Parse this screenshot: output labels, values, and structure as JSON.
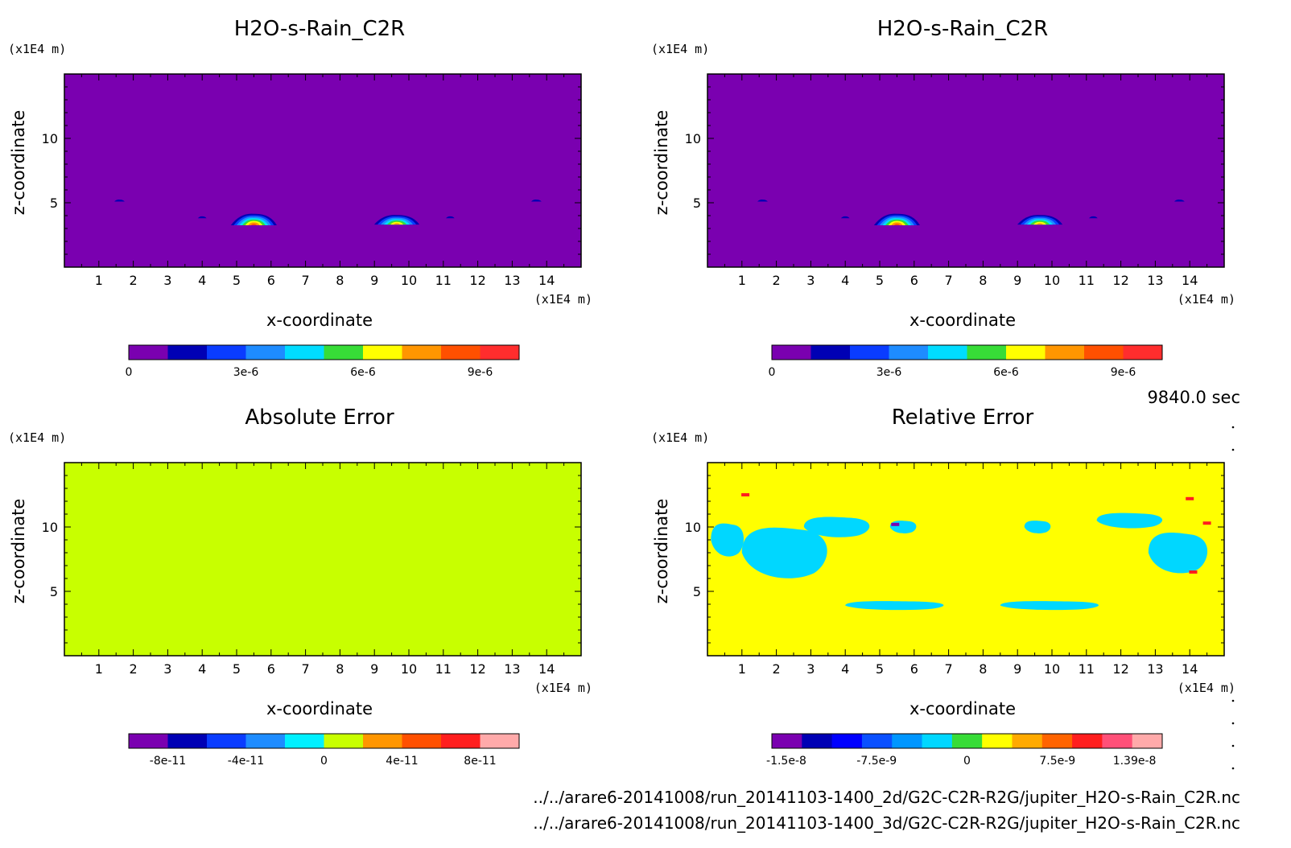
{
  "figure": {
    "time_label": "9840.0 sec",
    "footer_lines": [
      "../../arare6-20141008/run_20141103-1400_2d/G2C-C2R-R2G/jupiter_H2O-s-Rain_C2R.nc",
      "../../arare6-20141008/run_20141103-1400_3d/G2C-C2R-R2G/jupiter_H2O-s-Rain_C2R.nc"
    ]
  },
  "chart_data": [
    {
      "type": "heatmap",
      "title": "H2O-s-Rain_C2R",
      "xlabel": "x-coordinate",
      "ylabel": "z-coordinate",
      "x_unit": "(x1E4 m)",
      "y_unit": "(x1E4 m)",
      "xlim": [
        0,
        15
      ],
      "ylim": [
        0,
        15
      ],
      "x_ticks": [
        1,
        2,
        3,
        4,
        5,
        6,
        7,
        8,
        9,
        10,
        11,
        12,
        13,
        14
      ],
      "y_ticks": [
        5,
        10
      ],
      "background": "#7a00b0",
      "features": [
        {
          "kind": "blob",
          "x": 5.5,
          "z": 3.6,
          "width": 1.5,
          "height": 1.0,
          "peak": 9e-06
        },
        {
          "kind": "blob",
          "x": 9.65,
          "z": 3.6,
          "width": 1.5,
          "height": 0.85,
          "peak": 8e-06
        },
        {
          "kind": "blob",
          "x": 4.0,
          "z": 3.9,
          "width": 0.5,
          "height": 0.3,
          "peak": 2e-06
        },
        {
          "kind": "blob",
          "x": 11.2,
          "z": 3.9,
          "width": 0.5,
          "height": 0.3,
          "peak": 2e-06
        },
        {
          "kind": "blob",
          "x": 1.6,
          "z": 5.2,
          "width": 0.6,
          "height": 0.3,
          "peak": 1.5e-06
        },
        {
          "kind": "blob",
          "x": 13.7,
          "z": 5.2,
          "width": 0.6,
          "height": 0.3,
          "peak": 1.5e-06
        },
        {
          "kind": "blob",
          "x": 7.1,
          "z": 3.6,
          "width": 0.2,
          "height": 0.2,
          "peak": 1e-06
        },
        {
          "kind": "blob",
          "x": 8.0,
          "z": 3.6,
          "width": 0.2,
          "height": 0.2,
          "peak": 1e-06
        }
      ],
      "colorbar": {
        "colors": [
          "#7a00b0",
          "#0000b4",
          "#0a3cff",
          "#1e8cff",
          "#00dcff",
          "#37dc37",
          "#ffff00",
          "#ff9600",
          "#ff5000",
          "#ff2d2d"
        ],
        "tick_labels": [
          {
            "value": 0,
            "label": "0"
          },
          {
            "value": 3e-06,
            "label": "3e-6"
          },
          {
            "value": 6e-06,
            "label": "6e-6"
          },
          {
            "value": 9e-06,
            "label": "9e-6"
          }
        ],
        "min": 0,
        "max": 1e-05
      }
    },
    {
      "type": "heatmap",
      "title": "H2O-s-Rain_C2R",
      "xlabel": "x-coordinate",
      "ylabel": "z-coordinate",
      "x_unit": "(x1E4 m)",
      "y_unit": "(x1E4 m)",
      "xlim": [
        0,
        15
      ],
      "ylim": [
        0,
        15
      ],
      "x_ticks": [
        1,
        2,
        3,
        4,
        5,
        6,
        7,
        8,
        9,
        10,
        11,
        12,
        13,
        14
      ],
      "y_ticks": [
        5,
        10
      ],
      "background": "#7a00b0",
      "features": [
        {
          "kind": "blob",
          "x": 5.5,
          "z": 3.6,
          "width": 1.5,
          "height": 1.0,
          "peak": 9e-06
        },
        {
          "kind": "blob",
          "x": 9.65,
          "z": 3.6,
          "width": 1.5,
          "height": 0.85,
          "peak": 8e-06
        },
        {
          "kind": "blob",
          "x": 4.0,
          "z": 3.9,
          "width": 0.5,
          "height": 0.3,
          "peak": 2e-06
        },
        {
          "kind": "blob",
          "x": 11.2,
          "z": 3.9,
          "width": 0.5,
          "height": 0.3,
          "peak": 2e-06
        },
        {
          "kind": "blob",
          "x": 1.6,
          "z": 5.2,
          "width": 0.6,
          "height": 0.3,
          "peak": 1.5e-06
        },
        {
          "kind": "blob",
          "x": 13.7,
          "z": 5.2,
          "width": 0.6,
          "height": 0.3,
          "peak": 1.5e-06
        },
        {
          "kind": "blob",
          "x": 7.1,
          "z": 3.6,
          "width": 0.2,
          "height": 0.2,
          "peak": 1e-06
        },
        {
          "kind": "blob",
          "x": 8.0,
          "z": 3.6,
          "width": 0.2,
          "height": 0.2,
          "peak": 1e-06
        }
      ],
      "colorbar": {
        "colors": [
          "#7a00b0",
          "#0000b4",
          "#0a3cff",
          "#1e8cff",
          "#00dcff",
          "#37dc37",
          "#ffff00",
          "#ff9600",
          "#ff5000",
          "#ff2d2d"
        ],
        "tick_labels": [
          {
            "value": 0,
            "label": "0"
          },
          {
            "value": 3e-06,
            "label": "3e-6"
          },
          {
            "value": 6e-06,
            "label": "6e-6"
          },
          {
            "value": 9e-06,
            "label": "9e-6"
          }
        ],
        "min": 0,
        "max": 1e-05
      }
    },
    {
      "type": "heatmap",
      "title": "Absolute Error",
      "xlabel": "x-coordinate",
      "ylabel": "z-coordinate",
      "x_unit": "(x1E4 m)",
      "y_unit": "(x1E4 m)",
      "xlim": [
        0,
        15
      ],
      "ylim": [
        0,
        15
      ],
      "x_ticks": [
        1,
        2,
        3,
        4,
        5,
        6,
        7,
        8,
        9,
        10,
        11,
        12,
        13,
        14
      ],
      "y_ticks": [
        5,
        10
      ],
      "background": "#c8ff00",
      "features": [
        {
          "kind": "patch",
          "x": 2.3,
          "z": 8.0,
          "width": 2.6,
          "height": 4.0,
          "value": 1e-11
        },
        {
          "kind": "patch",
          "x": 3.8,
          "z": 10.0,
          "width": 2.0,
          "height": 1.6,
          "value": 1e-11
        },
        {
          "kind": "patch",
          "x": 0.6,
          "z": 9.0,
          "width": 1.0,
          "height": 2.6,
          "value": 1e-11
        },
        {
          "kind": "patch",
          "x": 5.7,
          "z": 10.0,
          "width": 0.8,
          "height": 1.0,
          "value": 1e-11
        },
        {
          "kind": "patch",
          "x": 9.6,
          "z": 10.0,
          "width": 0.8,
          "height": 1.0,
          "value": 1e-11
        },
        {
          "kind": "patch",
          "x": 12.3,
          "z": 10.5,
          "width": 2.0,
          "height": 1.2,
          "value": 1e-11
        },
        {
          "kind": "patch",
          "x": 13.7,
          "z": 8.0,
          "width": 1.8,
          "height": 3.2,
          "value": 1e-11
        },
        {
          "kind": "patch",
          "x": 5.5,
          "z": 3.9,
          "width": 3.0,
          "height": 0.7,
          "value": 1e-11
        },
        {
          "kind": "patch",
          "x": 10.0,
          "z": 3.9,
          "width": 3.0,
          "height": 0.7,
          "value": 1e-11
        }
      ],
      "colorbar": {
        "colors": [
          "#7a00b0",
          "#0000b4",
          "#0a3cff",
          "#1e8cff",
          "#00f0ff",
          "#c8ff00",
          "#ff9600",
          "#ff5000",
          "#ff1e1e",
          "#ffaaaa"
        ],
        "tick_labels": [
          {
            "value": -8e-11,
            "label": "-8e-11"
          },
          {
            "value": -4e-11,
            "label": "-4e-11"
          },
          {
            "value": 0,
            "label": "0"
          },
          {
            "value": 4e-11,
            "label": "4e-11"
          },
          {
            "value": 8e-11,
            "label": "8e-11"
          }
        ],
        "min": -1e-10,
        "max": 1e-10
      }
    },
    {
      "type": "heatmap",
      "title": "Relative Error",
      "xlabel": "x-coordinate",
      "ylabel": "z-coordinate",
      "x_unit": "(x1E4 m)",
      "y_unit": "(x1E4 m)",
      "xlim": [
        0,
        15
      ],
      "ylim": [
        0,
        15
      ],
      "x_ticks": [
        1,
        2,
        3,
        4,
        5,
        6,
        7,
        8,
        9,
        10,
        11,
        12,
        13,
        14
      ],
      "y_ticks": [
        5,
        10
      ],
      "background": "#ffff00",
      "features": [
        {
          "kind": "patch",
          "x": 2.3,
          "z": 8.0,
          "width": 2.6,
          "height": 4.0,
          "value": -2e-09
        },
        {
          "kind": "patch",
          "x": 3.8,
          "z": 10.0,
          "width": 2.0,
          "height": 1.6,
          "value": -2e-09
        },
        {
          "kind": "patch",
          "x": 0.6,
          "z": 9.0,
          "width": 1.0,
          "height": 2.6,
          "value": -2e-09
        },
        {
          "kind": "patch",
          "x": 5.7,
          "z": 10.0,
          "width": 0.8,
          "height": 1.0,
          "value": -2e-09
        },
        {
          "kind": "patch",
          "x": 9.6,
          "z": 10.0,
          "width": 0.8,
          "height": 1.0,
          "value": -2e-09
        },
        {
          "kind": "patch",
          "x": 12.3,
          "z": 10.5,
          "width": 2.0,
          "height": 1.2,
          "value": -2e-09
        },
        {
          "kind": "patch",
          "x": 13.7,
          "z": 8.0,
          "width": 1.8,
          "height": 3.2,
          "value": -2e-09
        },
        {
          "kind": "patch",
          "x": 5.5,
          "z": 3.9,
          "width": 3.0,
          "height": 0.7,
          "value": -2e-09
        },
        {
          "kind": "patch",
          "x": 10.0,
          "z": 3.9,
          "width": 3.0,
          "height": 0.7,
          "value": -2e-09
        },
        {
          "kind": "spot",
          "x": 5.45,
          "z": 10.2,
          "value": -1.4e-08
        },
        {
          "kind": "spot",
          "x": 14.0,
          "z": 12.2,
          "value": 1e-08
        },
        {
          "kind": "spot",
          "x": 14.5,
          "z": 10.3,
          "value": 1e-08
        },
        {
          "kind": "spot",
          "x": 1.1,
          "z": 12.5,
          "value": 1e-08
        },
        {
          "kind": "spot",
          "x": 14.1,
          "z": 6.5,
          "value": 1e-08
        }
      ],
      "colorbar": {
        "colors": [
          "#7a00b0",
          "#0000b4",
          "#0000ff",
          "#0a50ff",
          "#0096ff",
          "#00d7ff",
          "#37dc37",
          "#ffff00",
          "#ffaa00",
          "#ff6400",
          "#ff1e1e",
          "#ff5078",
          "#ffaaaa"
        ],
        "tick_labels": [
          {
            "value": -1.5e-08,
            "label": "-1.5e-8"
          },
          {
            "value": -7.5e-09,
            "label": "-7.5e-9"
          },
          {
            "value": 0,
            "label": "0"
          },
          {
            "value": 7.5e-09,
            "label": "7.5e-9"
          },
          {
            "value": 1.39e-08,
            "label": "1.39e-8"
          }
        ],
        "min": -1.62e-08,
        "max": 1.62e-08
      }
    }
  ]
}
